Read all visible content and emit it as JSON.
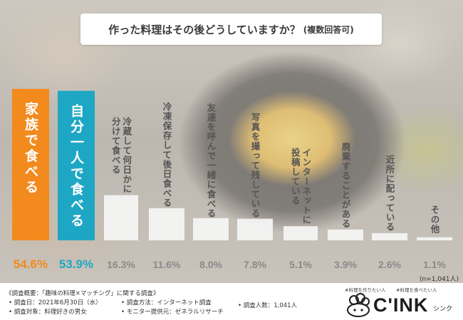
{
  "title": "作った料理はその後どうしていますか？",
  "subtitle": "(複数回答可)",
  "sample_note": "(n=1,041人)",
  "colors": {
    "accent_orange": "#F28A1E",
    "accent_teal": "#1EA7C4",
    "bar_white": "#f5f5f5",
    "label_gray": "#8a8a8a"
  },
  "chart_data": {
    "type": "bar",
    "categories": [
      "家族で食べる",
      "自分一人で食べる",
      "冷蔵して何日かに分けて食べる",
      "冷凍保存して後日食べる",
      "友達を呼んで一緒に食べる",
      "写真を撮って残している",
      "インターネットに投稿している",
      "廃棄することがある",
      "近所に配っている",
      "その他"
    ],
    "label_lines": [
      [
        "家族で食べる"
      ],
      [
        "自分一人で食べる"
      ],
      [
        "冷蔵して何日かに",
        "分けて食べる"
      ],
      [
        "冷凍保存して後日食べる"
      ],
      [
        "友達を呼んで一緒に食べる"
      ],
      [
        "写真を撮って残している"
      ],
      [
        "インターネットに",
        "投稿している"
      ],
      [
        "廃棄することがある"
      ],
      [
        "近所に配っている"
      ],
      [
        "その他"
      ]
    ],
    "values": [
      54.6,
      53.9,
      16.3,
      11.6,
      8.0,
      7.8,
      5.1,
      3.9,
      2.6,
      1.1
    ],
    "value_labels": [
      "54.6%",
      "53.9%",
      "16.3%",
      "11.6%",
      "8.0%",
      "7.8%",
      "5.1%",
      "3.9%",
      "2.6%",
      "1.1%"
    ],
    "highlight_colors": [
      "#F28A1E",
      "#1EA7C4"
    ],
    "ylim": [
      0,
      55
    ]
  },
  "footer": {
    "survey_overview": "《調査概要：「趣味の料理×マッチング」に関する調査》",
    "survey_date": "• 調査日：2021年6月30日（水）",
    "survey_method": "• 調査方法：インターネット調査",
    "survey_count": "• 調査人数：1,041人",
    "survey_target": "• 調査対象：料理好きの男女",
    "survey_provider": "• モニター提供元：ゼネラルリサーチ"
  },
  "logo": {
    "tagline_left": "#料理を作りたい人",
    "tagline_right": "#料理を食べたい人",
    "brand": "C'INK",
    "brand_kana": "シンク"
  }
}
